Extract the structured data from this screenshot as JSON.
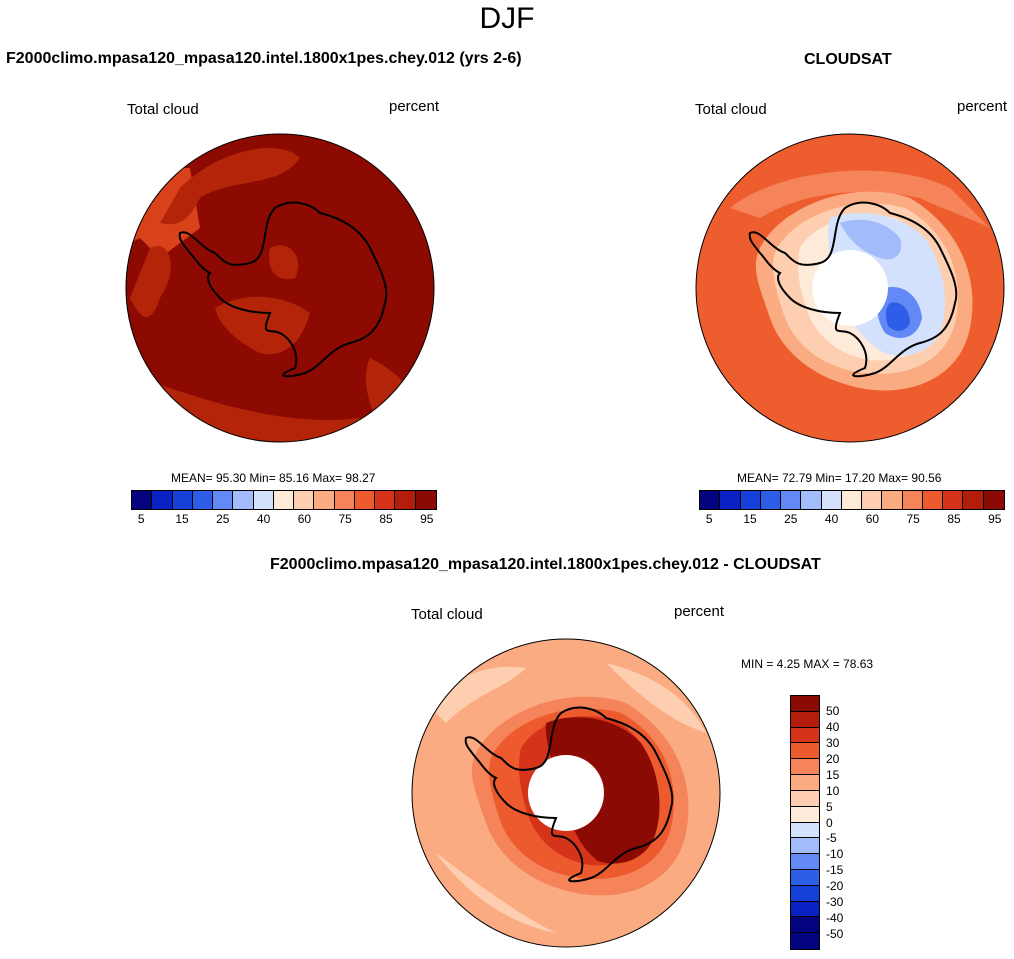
{
  "season": "DJF",
  "palette": {
    "diverging": [
      "#030380",
      "#0A22C3",
      "#1540DA",
      "#2E5EE8",
      "#6289F5",
      "#A2BBFA",
      "#D4E1FC",
      "#FEEAD8",
      "#FDCFB0",
      "#FBAB82",
      "#F6845A",
      "#EC5A2E",
      "#D5331A",
      "#B31D0C",
      "#8C0A04"
    ],
    "panel1_fill": "#8D0A03",
    "panel1_patch": "#B32408",
    "panel1_edge": "#D9411A",
    "panel2_ocean": "#EE5D2E",
    "panel2_inner": "#FBAB82",
    "panel3_ocean": "#FBAB82",
    "panel3_ring": "#EC5A2E",
    "panel3_land": "#8C0A04"
  },
  "panel_model": {
    "title": "F2000climo.mpasa120_mpasa120.intel.1800x1pes.chey.012 (yrs 2-6)",
    "variable": "Total cloud",
    "units": "percent",
    "stats": "MEAN=  95.30  Min=  85.16  Max=  98.27",
    "colorbar_ticks": [
      "5",
      "15",
      "25",
      "40",
      "60",
      "75",
      "85",
      "95"
    ]
  },
  "panel_obs": {
    "title": "CLOUDSAT",
    "variable": "Total cloud",
    "units": "percent",
    "stats": "MEAN=  72.79  Min=  17.20  Max=  90.56",
    "colorbar_ticks": [
      "5",
      "15",
      "25",
      "40",
      "60",
      "75",
      "85",
      "95"
    ]
  },
  "panel_diff": {
    "title": "F2000climo.mpasa120_mpasa120.intel.1800x1pes.chey.012 - CLOUDSAT",
    "variable": "Total cloud",
    "units": "percent",
    "stats": "MIN =   4.25 MAX =  78.63",
    "diff_colors": [
      "#8C0A04",
      "#B31D0C",
      "#D5331A",
      "#EC5A2E",
      "#F6845A",
      "#FBAB82",
      "#FDCFB0",
      "#FEEAD8",
      "#D4E1FC",
      "#A2BBFA",
      "#6289F5",
      "#2E5EE8",
      "#1540DA",
      "#0A22C3",
      "#030380"
    ],
    "colorbar_ticks": [
      "50",
      "40",
      "30",
      "20",
      "15",
      "10",
      "5",
      "0",
      "-5",
      "-10",
      "-15",
      "-20",
      "-30",
      "-40",
      "-50"
    ]
  }
}
